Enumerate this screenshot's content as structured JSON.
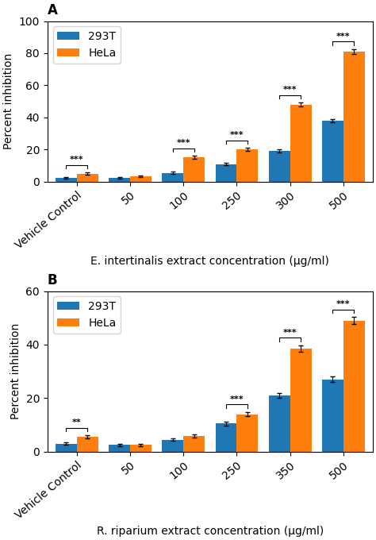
{
  "chart_data": [
    {
      "type": "bar",
      "title": "A",
      "categories": [
        "Vehicle Control",
        "50",
        "100",
        "250",
        "300",
        "500"
      ],
      "series": [
        {
          "name": "293T",
          "values": [
            2.5,
            2.5,
            5.5,
            11,
            19,
            38
          ],
          "errors": [
            0.5,
            0.4,
            0.8,
            0.9,
            1.0,
            1.2
          ]
        },
        {
          "name": "HeLa",
          "values": [
            5,
            3.5,
            15,
            20,
            48,
            81
          ],
          "errors": [
            0.6,
            0.5,
            1.0,
            1.0,
            1.2,
            1.5
          ]
        }
      ],
      "ylim": [
        0,
        100
      ],
      "yticks": [
        0,
        20,
        40,
        60,
        80,
        100
      ],
      "xlabel": "E. intertinalis extract concentration (μg/ml)",
      "ylabel": "Percent inhibition",
      "annotations": [
        {
          "category": "Vehicle Control",
          "label": "***"
        },
        {
          "category": "100",
          "label": "***"
        },
        {
          "category": "250",
          "label": "***"
        },
        {
          "category": "300",
          "label": "***"
        },
        {
          "category": "500",
          "label": "***"
        }
      ],
      "legend": "upper left"
    },
    {
      "type": "bar",
      "title": "B",
      "categories": [
        "Vehicle Control",
        "50",
        "100",
        "250",
        "350",
        "500"
      ],
      "series": [
        {
          "name": "293T",
          "values": [
            3,
            2.5,
            4.5,
            10.5,
            21,
            27
          ],
          "errors": [
            0.5,
            0.4,
            0.5,
            0.7,
            0.9,
            1.0
          ]
        },
        {
          "name": "HeLa",
          "values": [
            5.5,
            2.5,
            6,
            14,
            38.5,
            49
          ],
          "errors": [
            0.6,
            0.4,
            0.6,
            0.8,
            1.2,
            1.3
          ]
        }
      ],
      "ylim": [
        0,
        60
      ],
      "yticks": [
        0,
        20,
        40,
        60
      ],
      "xlabel": "R. riparium extract concentration (μg/ml)",
      "ylabel": "Percent inhibition",
      "annotations": [
        {
          "category": "Vehicle Control",
          "label": "**"
        },
        {
          "category": "250",
          "label": "***"
        },
        {
          "category": "350",
          "label": "***"
        },
        {
          "category": "500",
          "label": "***"
        }
      ],
      "legend": "upper left"
    }
  ]
}
